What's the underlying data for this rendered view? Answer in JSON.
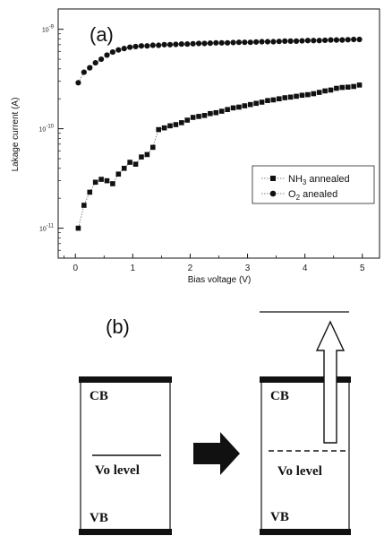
{
  "chart_data": {
    "type": "scatter",
    "panel_label": "(a)",
    "xlabel": "Bias voltage (V)",
    "ylabel": "Lakage current (A)",
    "xlim": [
      -0.3,
      5.3
    ],
    "ylim": [
      5e-12,
      1.6e-09
    ],
    "y_scale": "log",
    "x_ticks": [
      "0",
      "1",
      "2",
      "3",
      "4",
      "5"
    ],
    "y_ticks": [
      {
        "base": "10",
        "exp": "-9",
        "value": 1e-09
      },
      {
        "base": "10",
        "exp": "-10",
        "value": 1e-10
      },
      {
        "base": "10",
        "exp": "-11",
        "value": 1e-11
      }
    ],
    "legend_position": "right",
    "series": [
      {
        "name": "NH3 annealed",
        "name_main": "NH",
        "name_sub": "3",
        "name_rest": " annealed",
        "marker": "square",
        "x": [
          0.05,
          0.15,
          0.25,
          0.35,
          0.45,
          0.55,
          0.65,
          0.75,
          0.85,
          0.95,
          1.05,
          1.15,
          1.25,
          1.35,
          1.45,
          1.55,
          1.65,
          1.75,
          1.85,
          1.95,
          2.05,
          2.15,
          2.25,
          2.35,
          2.45,
          2.55,
          2.65,
          2.75,
          2.85,
          2.95,
          3.05,
          3.15,
          3.25,
          3.35,
          3.45,
          3.55,
          3.65,
          3.75,
          3.85,
          3.95,
          4.05,
          4.15,
          4.25,
          4.35,
          4.45,
          4.55,
          4.65,
          4.75,
          4.85,
          4.95
        ],
        "y": [
          1e-11,
          1.7e-11,
          2.3e-11,
          2.9e-11,
          3.1e-11,
          3e-11,
          2.8e-11,
          3.5e-11,
          4e-11,
          4.6e-11,
          4.4e-11,
          5.2e-11,
          5.5e-11,
          6.5e-11,
          9.8e-11,
          1.02e-10,
          1.07e-10,
          1.1e-10,
          1.15e-10,
          1.22e-10,
          1.3e-10,
          1.33e-10,
          1.36e-10,
          1.42e-10,
          1.45e-10,
          1.5e-10,
          1.56e-10,
          1.62e-10,
          1.65e-10,
          1.7e-10,
          1.75e-10,
          1.8e-10,
          1.85e-10,
          1.92e-10,
          1.95e-10,
          2e-10,
          2.05e-10,
          2.08e-10,
          2.12e-10,
          2.17e-10,
          2.2e-10,
          2.25e-10,
          2.32e-10,
          2.4e-10,
          2.45e-10,
          2.55e-10,
          2.6e-10,
          2.62e-10,
          2.66e-10,
          2.75e-10
        ]
      },
      {
        "name": "O2 anealed",
        "name_main": "O",
        "name_sub": "2",
        "name_rest": " anealed",
        "marker": "circle",
        "x": [
          0.05,
          0.15,
          0.25,
          0.35,
          0.45,
          0.55,
          0.65,
          0.75,
          0.85,
          0.95,
          1.05,
          1.15,
          1.25,
          1.35,
          1.45,
          1.55,
          1.65,
          1.75,
          1.85,
          1.95,
          2.05,
          2.15,
          2.25,
          2.35,
          2.45,
          2.55,
          2.65,
          2.75,
          2.85,
          2.95,
          3.05,
          3.15,
          3.25,
          3.35,
          3.45,
          3.55,
          3.65,
          3.75,
          3.85,
          3.95,
          4.05,
          4.15,
          4.25,
          4.35,
          4.45,
          4.55,
          4.65,
          4.75,
          4.85,
          4.95
        ],
        "y": [
          2.9e-10,
          3.7e-10,
          4.1e-10,
          4.6e-10,
          5e-10,
          5.5e-10,
          5.9e-10,
          6.2e-10,
          6.4e-10,
          6.6e-10,
          6.7e-10,
          6.8e-10,
          6.8e-10,
          6.9e-10,
          6.9e-10,
          7e-10,
          7e-10,
          7.05e-10,
          7.1e-10,
          7.1e-10,
          7.15e-10,
          7.2e-10,
          7.2e-10,
          7.25e-10,
          7.3e-10,
          7.3e-10,
          7.3e-10,
          7.35e-10,
          7.4e-10,
          7.4e-10,
          7.4e-10,
          7.45e-10,
          7.5e-10,
          7.5e-10,
          7.5e-10,
          7.55e-10,
          7.6e-10,
          7.6e-10,
          7.6e-10,
          7.65e-10,
          7.7e-10,
          7.7e-10,
          7.7e-10,
          7.75e-10,
          7.8e-10,
          7.8e-10,
          7.8e-10,
          7.85e-10,
          7.9e-10,
          7.9e-10
        ]
      }
    ]
  },
  "diagram": {
    "panel_label": "(b)",
    "left_band": {
      "cb": "CB",
      "vb": "VB",
      "vo": "Vo level"
    },
    "right_band": {
      "cb": "CB",
      "vb": "VB",
      "vo": "Vo level"
    }
  }
}
